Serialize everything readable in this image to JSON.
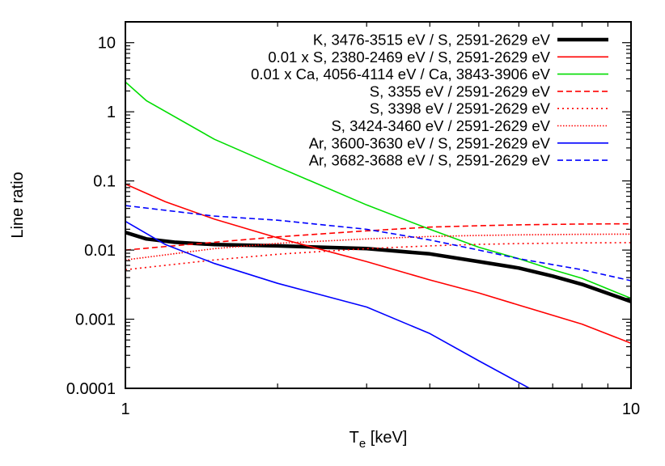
{
  "chart_data": {
    "type": "line",
    "xlabel": "T",
    "xlabel_subscript": "e",
    "xlabel_suffix": " [keV]",
    "ylabel": "Line ratio",
    "x_scale": "log",
    "y_scale": "log",
    "xlim": [
      1,
      10
    ],
    "ylim": [
      0.0001,
      20
    ],
    "x_tick_labels": [
      "1",
      "10"
    ],
    "y_tick_labels": [
      "10",
      "1",
      "0.1",
      "0.01",
      "0.001",
      "0.0001"
    ],
    "grid": false,
    "legend_position": "top-right",
    "series": [
      {
        "name": "K, 3476-3515 eV / S, 2591-2629 eV",
        "color": "#000000",
        "style": "solid",
        "weight": "thick",
        "x": [
          1,
          1.1,
          1.25,
          1.5,
          2,
          3,
          4,
          5,
          6,
          7,
          8,
          10
        ],
        "y": [
          0.018,
          0.0145,
          0.013,
          0.012,
          0.0115,
          0.0105,
          0.0088,
          0.0068,
          0.0055,
          0.0042,
          0.0032,
          0.0018
        ]
      },
      {
        "name": "0.01 x S, 2380-2469 eV / S, 2591-2629 eV",
        "color": "#ff0000",
        "style": "solid",
        "weight": "normal",
        "x": [
          1,
          1.2,
          1.5,
          2,
          3,
          4,
          5,
          6,
          8,
          10
        ],
        "y": [
          0.09,
          0.05,
          0.028,
          0.015,
          0.0068,
          0.0037,
          0.0024,
          0.0016,
          0.00085,
          0.00045
        ]
      },
      {
        "name": "0.01 x Ca, 4056-4114 eV / Ca, 3843-3906 eV",
        "color": "#00dd00",
        "style": "solid",
        "weight": "normal",
        "x": [
          1,
          1.1,
          1.5,
          2,
          3,
          4,
          5,
          6,
          7,
          8,
          10
        ],
        "y": [
          2.7,
          1.45,
          0.4,
          0.16,
          0.045,
          0.02,
          0.011,
          0.0075,
          0.0052,
          0.0039,
          0.002
        ]
      },
      {
        "name": "S, 3355 eV / 2591-2629 eV",
        "color": "#ff0000",
        "style": "dashed",
        "weight": "normal",
        "x": [
          1,
          1.5,
          2,
          3,
          4,
          5,
          6,
          8,
          10
        ],
        "y": [
          0.01,
          0.013,
          0.0155,
          0.019,
          0.0215,
          0.0225,
          0.0232,
          0.0238,
          0.024
        ]
      },
      {
        "name": "S, 3398 eV / 2591-2629 eV",
        "color": "#ff0000",
        "style": "dotted",
        "weight": "normal",
        "x": [
          1,
          1.5,
          2,
          3,
          4,
          5,
          6,
          8,
          10
        ],
        "y": [
          0.0052,
          0.0072,
          0.0087,
          0.0105,
          0.0115,
          0.0121,
          0.0124,
          0.0127,
          0.0128
        ]
      },
      {
        "name": "S, 3424-3460 eV / 2591-2629 eV",
        "color": "#ff0000",
        "style": "densedot",
        "weight": "normal",
        "x": [
          1,
          1.5,
          2,
          3,
          4,
          5,
          6,
          8,
          10
        ],
        "y": [
          0.0072,
          0.0105,
          0.0125,
          0.0145,
          0.0157,
          0.0163,
          0.0166,
          0.0169,
          0.017
        ]
      },
      {
        "name": "Ar, 3600-3630 eV / S, 2591-2629 eV",
        "color": "#0000ff",
        "style": "solid",
        "weight": "normal",
        "x": [
          1,
          1.2,
          1.5,
          2,
          3,
          4,
          5,
          6.3
        ],
        "y": [
          0.026,
          0.012,
          0.0064,
          0.0033,
          0.0015,
          0.00062,
          0.00025,
          0.0001
        ]
      },
      {
        "name": "Ar, 3682-3688 eV / S, 2591-2629 eV",
        "color": "#0000ff",
        "style": "dashed",
        "weight": "normal",
        "x": [
          1,
          1.5,
          2,
          3,
          4,
          5,
          6,
          8,
          10
        ],
        "y": [
          0.044,
          0.031,
          0.027,
          0.02,
          0.014,
          0.01,
          0.0075,
          0.0052,
          0.0036
        ]
      }
    ]
  }
}
